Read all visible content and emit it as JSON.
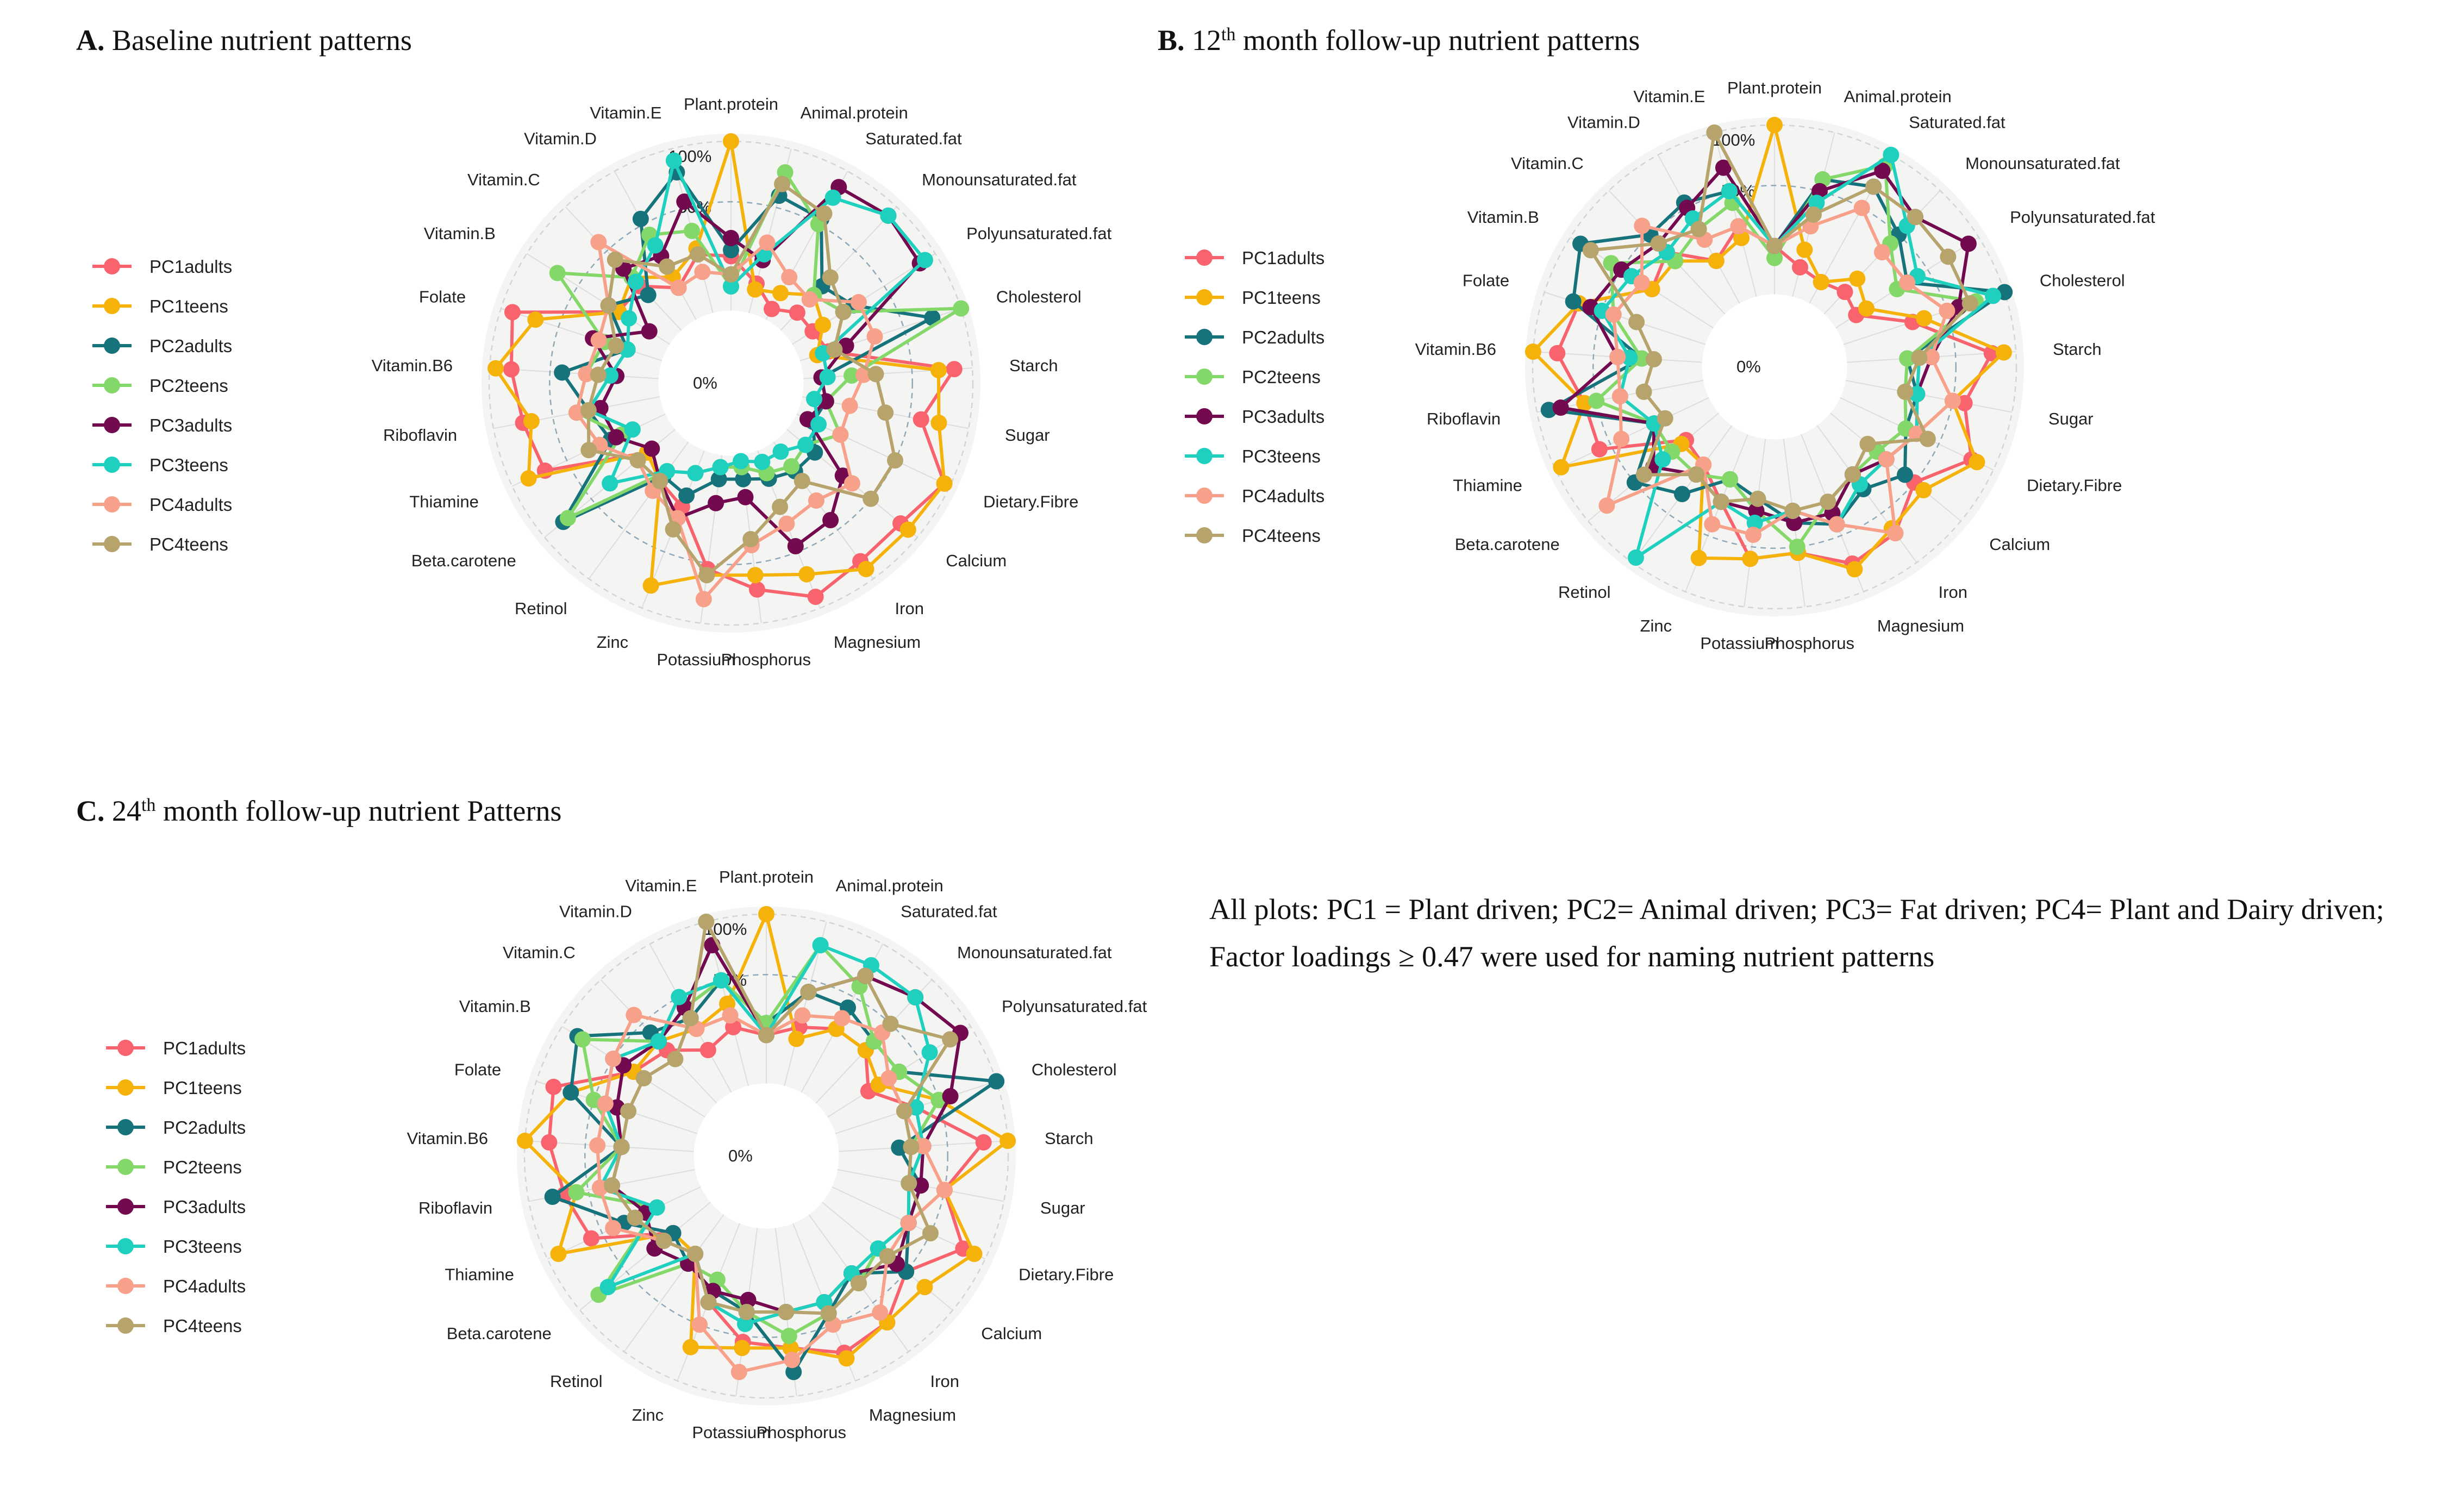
{
  "note": "All plots: PC1 = Plant driven; PC2= Animal driven; PC3= Fat driven; PC4= Plant and Dairy driven; Factor loadings ≥ 0.47 were used for naming nutrient patterns",
  "chart_data": [
    {
      "type": "radar",
      "panel": "A.",
      "title": "Baseline nutrient patterns",
      "title_parts": [
        "Baseline nutrient patterns"
      ],
      "ring_labels": [
        "100%",
        "50%",
        "0%"
      ],
      "axes": [
        "Plant.protein",
        "Animal.protein",
        "Saturated.fat",
        "Monounsaturated.fat",
        "Polyunsaturated.fat",
        "Cholesterol",
        "Starch",
        "Sugar",
        "Dietary.Fibre",
        "Calcium",
        "Iron",
        "Magnesium",
        "Phosphorus",
        "Potassium",
        "Zinc",
        "Retinol",
        "Beta.carotene",
        "Thiamine",
        "Riboflavin",
        "Vitamin.B6",
        "Folate",
        "Vitamin.B",
        "Vitamin.C",
        "Vitamin.D",
        "Vitamin.E"
      ],
      "rlim": [
        -1.0,
        1.0
      ],
      "series": [
        {
          "name": "PC1adults",
          "color": "#f8636d",
          "values": [
            0.05,
            -0.15,
            -0.3,
            -0.2,
            -0.2,
            -0.15,
            0.85,
            0.6,
            0.95,
            0.82,
            0.82,
            0.9,
            0.72,
            0.55,
            0.1,
            0.0,
            -0.1,
            0.7,
            0.75,
            0.82,
            0.9,
            0.1,
            0.1,
            -0.1,
            0.1
          ]
        },
        {
          "name": "PC1teens",
          "color": "#f5b20a",
          "values": [
            1.0,
            -0.2,
            -0.15,
            0.0,
            -0.1,
            -0.25,
            0.72,
            0.75,
            0.95,
            0.9,
            0.9,
            0.7,
            0.6,
            0.6,
            0.8,
            0.0,
            -0.1,
            0.85,
            0.68,
            0.95,
            0.7,
            0.1,
            0.2,
            0.0,
            0.15
          ]
        },
        {
          "name": "PC2adults",
          "color": "#16737b",
          "values": [
            0.1,
            0.6,
            0.55,
            0.1,
            0.2,
            0.75,
            -0.25,
            -0.2,
            -0.25,
            -0.1,
            -0.1,
            -0.15,
            -0.2,
            -0.2,
            0.0,
            -0.05,
            0.8,
            0.1,
            0.2,
            0.4,
            -0.1,
            0.2,
            0.0,
            0.55,
            0.8
          ]
        },
        {
          "name": "PC2teens",
          "color": "#84d86a",
          "values": [
            -0.2,
            0.8,
            0.5,
            0.0,
            0.1,
            1.0,
            0.0,
            -0.2,
            0.0,
            -0.2,
            -0.15,
            -0.2,
            -0.3,
            -0.3,
            -0.2,
            -0.1,
            0.75,
            0.0,
            0.3,
            0.2,
            0.1,
            0.7,
            0.2,
            0.4,
            0.3
          ]
        },
        {
          "name": "PC3adults",
          "color": "#73094f",
          "values": [
            0.2,
            0.05,
            0.85,
            0.9,
            0.85,
            0.0,
            -0.25,
            -0.2,
            -0.3,
            0.2,
            0.4,
            0.45,
            -0.05,
            0.0,
            0.2,
            0.0,
            -0.15,
            0.05,
            0.1,
            -0.05,
            0.2,
            -0.2,
            0.3,
            0.2,
            0.55
          ]
        },
        {
          "name": "PC3teens",
          "color": "#20d0bf",
          "values": [
            -0.2,
            0.1,
            0.75,
            0.9,
            0.9,
            -0.2,
            -0.2,
            -0.3,
            -0.2,
            -0.2,
            -0.3,
            -0.3,
            -0.35,
            -0.3,
            -0.2,
            -0.1,
            0.3,
            -0.1,
            0.2,
            0.0,
            -0.1,
            0.0,
            0.15,
            0.3,
            0.9
          ]
        },
        {
          "name": "PC4adults",
          "color": "#f7a08a",
          "values": [
            -0.1,
            0.2,
            0.0,
            -0.05,
            0.25,
            0.25,
            0.1,
            0.0,
            0.0,
            0.3,
            0.2,
            0.25,
            0.35,
            0.8,
            0.2,
            0.1,
            0.0,
            0.2,
            0.3,
            0.2,
            0.15,
            0.2,
            0.6,
            -0.1,
            -0.05
          ]
        },
        {
          "name": "PC4teens",
          "color": "#b6a46c",
          "values": [
            -0.1,
            0.7,
            0.6,
            0.2,
            0.1,
            -0.1,
            0.2,
            0.3,
            0.5,
            0.5,
            0.0,
            0.1,
            0.3,
            0.6,
            0.3,
            0.0,
            0.0,
            0.3,
            0.2,
            0.1,
            0.0,
            0.2,
            0.4,
            0.1,
            0.1
          ]
        }
      ]
    },
    {
      "type": "radar",
      "panel": "B.",
      "title": "12th month follow-up nutrient patterns",
      "title_parts": [
        "12",
        "th",
        " month follow-up nutrient patterns"
      ],
      "ring_labels": [
        "100%",
        "50%",
        "0%"
      ],
      "axes": [
        "Plant.protein",
        "Animal.protein",
        "Saturated.fat",
        "Monounsaturated.fat",
        "Polyunsaturated.fat",
        "Cholesterol",
        "Starch",
        "Sugar",
        "Dietary.Fibre",
        "Calcium",
        "Iron",
        "Magnesium",
        "Phosphorus",
        "Potassium",
        "Zinc",
        "Retinol",
        "Beta.carotene",
        "Thiamine",
        "Riboflavin",
        "Vitamin.B6",
        "Folate",
        "Vitamin.B",
        "Vitamin.C",
        "Vitamin.D",
        "Vitamin.E"
      ],
      "rlim": [
        -1.0,
        1.0
      ],
      "series": [
        {
          "name": "PC1adults",
          "color": "#f8636d",
          "values": [
            0.0,
            -0.15,
            -0.2,
            -0.15,
            -0.2,
            0.2,
            0.8,
            0.6,
            0.8,
            0.5,
            0.7,
            0.75,
            0.55,
            0.6,
            0.2,
            0.0,
            -0.05,
            0.6,
            0.6,
            0.8,
            0.7,
            0.2,
            0.3,
            0.0,
            0.2
          ]
        },
        {
          "name": "PC1teens",
          "color": "#f5b20a",
          "values": [
            1.0,
            0.0,
            -0.2,
            0.0,
            -0.1,
            0.3,
            0.9,
            0.5,
            0.85,
            0.6,
            0.65,
            0.8,
            0.55,
            0.6,
            0.7,
            0.0,
            0.0,
            0.95,
            0.6,
            1.0,
            0.7,
            0.2,
            0.2,
            0.0,
            0.1
          ]
        },
        {
          "name": "PC2adults",
          "color": "#16737b",
          "values": [
            0.0,
            0.6,
            0.7,
            0.5,
            0.3,
            1.0,
            0.1,
            0.2,
            0.2,
            0.4,
            0.25,
            0.4,
            0.3,
            0.1,
            0.0,
            0.3,
            0.5,
            0.1,
            0.9,
            0.1,
            0.75,
            0.9,
            0.5,
            0.55,
            0.5
          ]
        },
        {
          "name": "PC2teens",
          "color": "#84d86a",
          "values": [
            -0.1,
            0.6,
            0.9,
            0.4,
            0.2,
            0.75,
            0.1,
            0.1,
            0.2,
            0.1,
            0.1,
            0.2,
            0.5,
            0.2,
            0.0,
            0.1,
            0.1,
            0.1,
            0.5,
            0.1,
            0.4,
            0.6,
            0.2,
            0.3,
            0.4
          ]
        },
        {
          "name": "PC3adults",
          "color": "#73094f",
          "values": [
            0.0,
            0.5,
            0.85,
            0.7,
            0.9,
            0.6,
            0.3,
            0.2,
            0.3,
            0.2,
            0.1,
            0.3,
            0.3,
            0.2,
            0.2,
            0.1,
            0.3,
            0.1,
            0.8,
            0.3,
            0.6,
            0.5,
            0.4,
            0.5,
            0.7
          ]
        },
        {
          "name": "PC3teens",
          "color": "#20d0bf",
          "values": [
            0.0,
            0.4,
            1.0,
            0.6,
            0.4,
            0.9,
            0.2,
            0.2,
            0.3,
            0.2,
            0.2,
            0.4,
            0.2,
            0.3,
            0.2,
            0.95,
            0.2,
            0.1,
            0.3,
            0.2,
            0.5,
            0.4,
            0.3,
            0.4,
            0.5
          ]
        },
        {
          "name": "PC4adults",
          "color": "#f7a08a",
          "values": [
            0.0,
            0.2,
            0.5,
            0.3,
            0.3,
            0.5,
            0.3,
            0.5,
            0.3,
            0.2,
            0.7,
            0.4,
            0.2,
            0.4,
            0.4,
            0.0,
            0.8,
            0.4,
            0.3,
            0.3,
            0.4,
            0.3,
            0.6,
            0.2,
            0.2
          ]
        },
        {
          "name": "PC4teens",
          "color": "#b6a46c",
          "values": [
            0.0,
            0.3,
            0.7,
            0.7,
            0.7,
            0.7,
            0.2,
            0.1,
            0.4,
            0.0,
            0.1,
            0.2,
            0.2,
            0.1,
            0.2,
            0.1,
            0.4,
            0.0,
            0.1,
            0.0,
            0.2,
            0.8,
            0.4,
            0.3,
            1.0
          ]
        }
      ]
    },
    {
      "type": "radar",
      "panel": "C.",
      "title": "24th month follow-up nutrient Patterns",
      "title_parts": [
        "24",
        "th",
        " month follow-up nutrient Patterns"
      ],
      "ring_labels": [
        "100%",
        "50%",
        "0%"
      ],
      "axes": [
        "Plant.protein",
        "Animal.protein",
        "Saturated.fat",
        "Monounsaturated.fat",
        "Polyunsaturated.fat",
        "Cholesterol",
        "Starch",
        "Sugar",
        "Dietary.Fibre",
        "Calcium",
        "Iron",
        "Magnesium",
        "Phosphorus",
        "Potassium",
        "Zinc",
        "Retinol",
        "Beta.carotene",
        "Thiamine",
        "Riboflavin",
        "Vitamin.B6",
        "Folate",
        "Vitamin.B",
        "Vitamin.C",
        "Vitamin.D",
        "Vitamin.E"
      ],
      "rlim": [
        -1.0,
        1.0
      ],
      "series": [
        {
          "name": "PC1adults",
          "color": "#f8636d",
          "values": [
            0.0,
            0.1,
            0.2,
            0.2,
            0.0,
            0.3,
            0.8,
            0.5,
            0.8,
            0.5,
            0.7,
            0.75,
            0.6,
            0.55,
            0.3,
            0.0,
            0.0,
            0.6,
            0.7,
            0.8,
            0.85,
            0.3,
            0.2,
            0.0,
            0.1
          ]
        },
        {
          "name": "PC1teens",
          "color": "#f5b20a",
          "values": [
            1.0,
            0.0,
            0.2,
            0.2,
            0.1,
            0.5,
            1.0,
            0.5,
            0.9,
            0.7,
            0.7,
            0.8,
            0.6,
            0.6,
            0.7,
            0.0,
            0.0,
            0.9,
            0.6,
            1.0,
            0.7,
            0.3,
            0.3,
            0.2,
            0.3
          ]
        },
        {
          "name": "PC2adults",
          "color": "#16737b",
          "values": [
            0.1,
            0.4,
            0.4,
            0.3,
            0.3,
            1.0,
            0.1,
            0.3,
            0.3,
            0.5,
            0.2,
            0.4,
            0.8,
            0.3,
            0.2,
            0.1,
            0.0,
            0.3,
            0.8,
            0.2,
            0.7,
            0.85,
            0.4,
            0.3,
            0.5
          ]
        },
        {
          "name": "PC2teens",
          "color": "#84d86a",
          "values": [
            0.1,
            0.8,
            0.6,
            0.3,
            0.3,
            0.5,
            0.2,
            0.2,
            0.3,
            0.2,
            0.3,
            0.4,
            0.5,
            0.3,
            0.1,
            0.1,
            0.8,
            0.0,
            0.6,
            0.2,
            0.5,
            0.8,
            0.3,
            0.4,
            0.5
          ]
        },
        {
          "name": "PC3adults",
          "color": "#73094f",
          "values": [
            0.0,
            0.4,
            0.7,
            0.8,
            0.9,
            0.6,
            0.3,
            0.3,
            0.3,
            0.4,
            0.2,
            0.3,
            0.3,
            0.2,
            0.2,
            0.1,
            0.2,
            0.1,
            0.3,
            0.2,
            0.3,
            0.4,
            0.3,
            0.4,
            0.8
          ]
        },
        {
          "name": "PC3teens",
          "color": "#20d0bf",
          "values": [
            0.0,
            0.8,
            0.8,
            0.8,
            0.6,
            0.3,
            0.3,
            0.2,
            0.3,
            0.2,
            0.2,
            0.3,
            0.3,
            0.4,
            0.3,
            0.0,
            0.7,
            0.0,
            0.4,
            0.2,
            0.4,
            0.5,
            0.3,
            0.5,
            0.5
          ]
        },
        {
          "name": "PC4adults",
          "color": "#f7a08a",
          "values": [
            0.0,
            0.2,
            0.3,
            0.4,
            0.2,
            0.2,
            0.3,
            0.5,
            0.3,
            0.3,
            0.6,
            0.5,
            0.7,
            0.8,
            0.5,
            0.0,
            0.1,
            0.4,
            0.4,
            0.4,
            0.4,
            0.5,
            0.6,
            0.2,
            0.2
          ]
        },
        {
          "name": "PC4teens",
          "color": "#b6a46c",
          "values": [
            0.0,
            0.4,
            0.7,
            0.5,
            0.8,
            0.2,
            0.2,
            0.2,
            0.5,
            0.3,
            0.3,
            0.4,
            0.3,
            0.3,
            0.3,
            0.0,
            0.1,
            0.2,
            0.3,
            0.2,
            0.2,
            0.2,
            0.1,
            0.3,
            1.0
          ]
        }
      ]
    }
  ]
}
